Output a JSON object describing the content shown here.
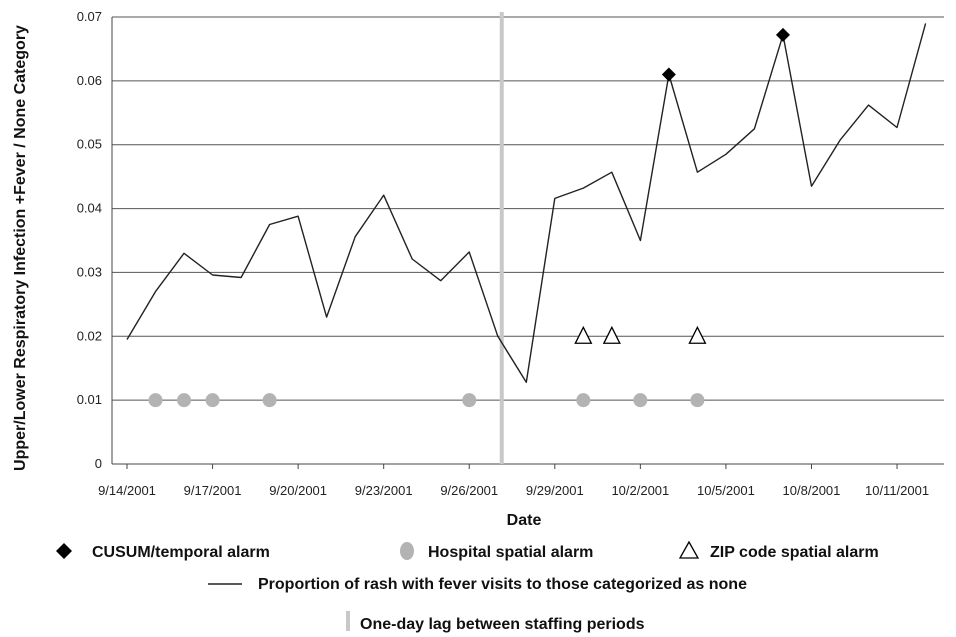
{
  "chart_data": {
    "type": "line",
    "title": "",
    "xlabel": "Date",
    "ylabel": "Upper/Lower Respiratory Infection +Fever / None Category",
    "ylim": [
      0,
      0.07
    ],
    "yticks": [
      "0",
      "0.01",
      "0.02",
      "0.03",
      "0.04",
      "0.05",
      "0.06",
      "0.07"
    ],
    "xticks": [
      "9/14/2001",
      "9/17/2001",
      "9/20/2001",
      "9/23/2001",
      "9/26/2001",
      "9/29/2001",
      "10/2/2001",
      "10/5/2001",
      "10/8/2001",
      "10/11/2001"
    ],
    "x_dates": [
      "9/14/2001",
      "9/15/2001",
      "9/16/2001",
      "9/17/2001",
      "9/18/2001",
      "9/19/2001",
      "9/20/2001",
      "9/21/2001",
      "9/22/2001",
      "9/23/2001",
      "9/24/2001",
      "9/25/2001",
      "9/26/2001",
      "9/27/2001",
      "9/28/2001",
      "9/29/2001",
      "9/30/2001",
      "10/1/2001",
      "10/2/2001",
      "10/3/2001",
      "10/4/2001",
      "10/5/2001",
      "10/6/2001",
      "10/7/2001",
      "10/8/2001",
      "10/9/2001",
      "10/10/2001",
      "10/11/2001",
      "10/12/2001"
    ],
    "grid": true,
    "series": [
      {
        "name": "Proportion of rash with fever visits to those categorized as none",
        "color": "#222222",
        "values": [
          0.0195,
          0.027,
          0.033,
          0.0296,
          0.0292,
          0.0375,
          0.0388,
          0.023,
          0.0356,
          0.0421,
          0.0321,
          0.0287,
          0.0332,
          0.02,
          0.0128,
          0.0416,
          0.0432,
          0.0457,
          0.035,
          0.061,
          0.0457,
          0.0485,
          0.0525,
          0.0672,
          0.0435,
          0.0507,
          0.0562,
          0.0527,
          0.069
        ]
      }
    ],
    "markers": {
      "cusum": {
        "label": "CUSUM/temporal alarm",
        "color": "#000000",
        "dates": [
          "10/3/2001",
          "10/7/2001"
        ]
      },
      "hospital": {
        "label": "Hospital spatial alarm",
        "color": "#b3b3b3",
        "value": 0.01,
        "dates": [
          "9/15/2001",
          "9/16/2001",
          "9/17/2001",
          "9/19/2001",
          "9/26/2001",
          "9/30/2001",
          "10/2/2001",
          "10/4/2001"
        ]
      },
      "zip": {
        "label": "ZIP code spatial alarm",
        "value": 0.02,
        "dates": [
          "9/30/2001",
          "10/1/2001",
          "10/4/2001"
        ]
      }
    },
    "lag_line": {
      "label": "One-day lag between staffing periods",
      "color": "#c8c8c8",
      "date": "9/27/2001"
    },
    "legend_position": "bottom"
  }
}
